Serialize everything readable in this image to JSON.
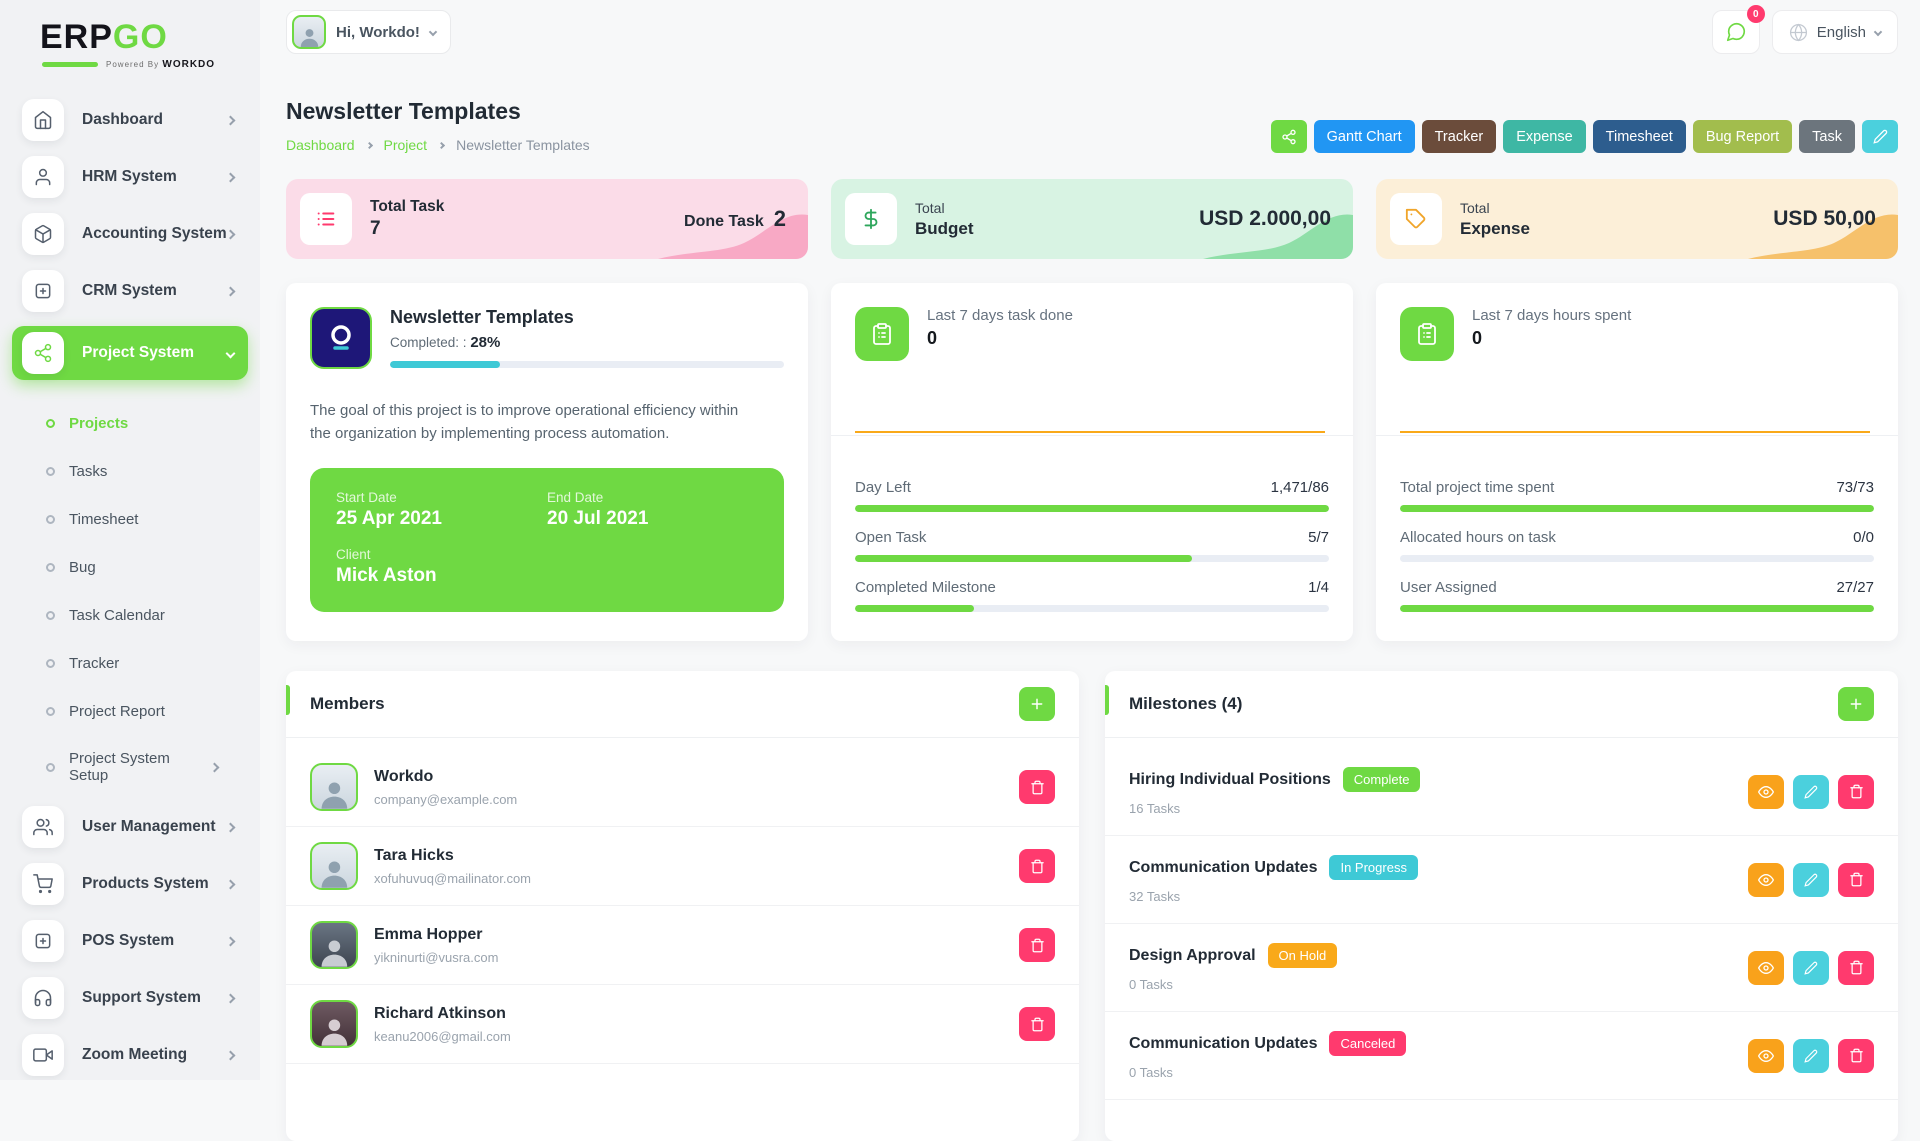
{
  "brand": {
    "erp": "ERP",
    "go": "GO",
    "powered": "Powered By",
    "powered_brand": "WORKDO"
  },
  "topbar": {
    "greeting": "Hi, Workdo!",
    "notification_badge": "0",
    "language": "English"
  },
  "sidebar": {
    "items_top": [
      {
        "label": "Dashboard"
      },
      {
        "label": "HRM System"
      },
      {
        "label": "Accounting System"
      },
      {
        "label": "CRM System"
      },
      {
        "label": "Project System"
      }
    ],
    "project_children": [
      "Projects",
      "Tasks",
      "Timesheet",
      "Bug",
      "Task Calendar",
      "Tracker",
      "Project Report",
      "Project System Setup"
    ],
    "items_bottom": [
      {
        "label": "User Management"
      },
      {
        "label": "Products System"
      },
      {
        "label": "POS System"
      },
      {
        "label": "Support System"
      },
      {
        "label": "Zoom Meeting"
      }
    ]
  },
  "page": {
    "title": "Newsletter Templates",
    "crumbs": [
      "Dashboard",
      "Project",
      "Newsletter Templates"
    ]
  },
  "toolbar": {
    "buttons": [
      {
        "label": "",
        "icon": "share",
        "bg": "#6fd943"
      },
      {
        "label": "Gantt Chart",
        "bg": "#2196f3"
      },
      {
        "label": "Tracker",
        "bg": "#6b4c3b"
      },
      {
        "label": "Expense",
        "bg": "#3eb7a4"
      },
      {
        "label": "Timesheet",
        "bg": "#2d5d8e"
      },
      {
        "label": "Bug Report",
        "bg": "#a2bd4d"
      },
      {
        "label": "Task",
        "bg": "#6c757d"
      },
      {
        "label": "",
        "icon": "pencil",
        "bg": "#4bd0dd"
      }
    ]
  },
  "stats": [
    {
      "title": "Total Task",
      "value": "7",
      "side_label": "Done Task",
      "side_value": "2",
      "bg": "#fbdce8",
      "wave": "#f8a9c5"
    },
    {
      "title": "Total",
      "subtitle": "Budget",
      "amount": "USD 2.000,00",
      "bg": "#d8f3e3",
      "wave": "#8fdfa8"
    },
    {
      "title": "Total",
      "subtitle": "Expense",
      "amount": "USD 50,00",
      "bg": "#fcefd8",
      "wave": "#f6c16b"
    }
  ],
  "project": {
    "name": "Newsletter Templates",
    "completed_label": "Completed: :",
    "completed_pct_text": "28%",
    "completed_pct": 28,
    "description": "The goal of this project is to improve operational efficiency within the organization by implementing process automation.",
    "start_date_label": "Start Date",
    "start_date": "25 Apr 2021",
    "end_date_label": "End Date",
    "end_date": "20 Jul 2021",
    "client_label": "Client",
    "client": "Mick Aston"
  },
  "task_summary": {
    "title": "Last 7 days task done",
    "value": "0",
    "rows": [
      {
        "label": "Day Left",
        "value": "1,471/86",
        "pct": 100
      },
      {
        "label": "Open Task",
        "value": "5/7",
        "pct": 71
      },
      {
        "label": "Completed Milestone",
        "value": "1/4",
        "pct": 25
      }
    ]
  },
  "hours_summary": {
    "title": "Last 7 days hours spent",
    "value": "0",
    "rows": [
      {
        "label": "Total project time spent",
        "value": "73/73",
        "pct": 100
      },
      {
        "label": "Allocated hours on task",
        "value": "0/0",
        "pct": 0
      },
      {
        "label": "User Assigned",
        "value": "27/27",
        "pct": 100
      }
    ]
  },
  "members": {
    "title": "Members",
    "rows": [
      {
        "name": "Workdo",
        "email": "company@example.com"
      },
      {
        "name": "Tara Hicks",
        "email": "xofuhuvuq@mailinator.com"
      },
      {
        "name": "Emma Hopper",
        "email": "yikninurti@vusra.com"
      },
      {
        "name": "Richard Atkinson",
        "email": "keanu2006@gmail.com"
      }
    ]
  },
  "milestones": {
    "title": "Milestones (4)",
    "rows": [
      {
        "name": "Hiring Individual Positions",
        "status": "Complete",
        "status_bg": "#6fd943",
        "tasks": "16 Tasks"
      },
      {
        "name": "Communication Updates",
        "status": "In Progress",
        "status_bg": "#3ec9d6",
        "tasks": "32 Tasks"
      },
      {
        "name": "Design Approval",
        "status": "On Hold",
        "status_bg": "#f9a91a",
        "tasks": "0 Tasks"
      },
      {
        "name": "Communication Updates",
        "status": "Canceled",
        "status_bg": "#ff3a6e",
        "tasks": "0 Tasks"
      }
    ]
  },
  "colors": {
    "primary": "#6fd943",
    "teal": "#3ec9d6",
    "orange": "#f9a91a",
    "pink": "#ff3a6e"
  }
}
